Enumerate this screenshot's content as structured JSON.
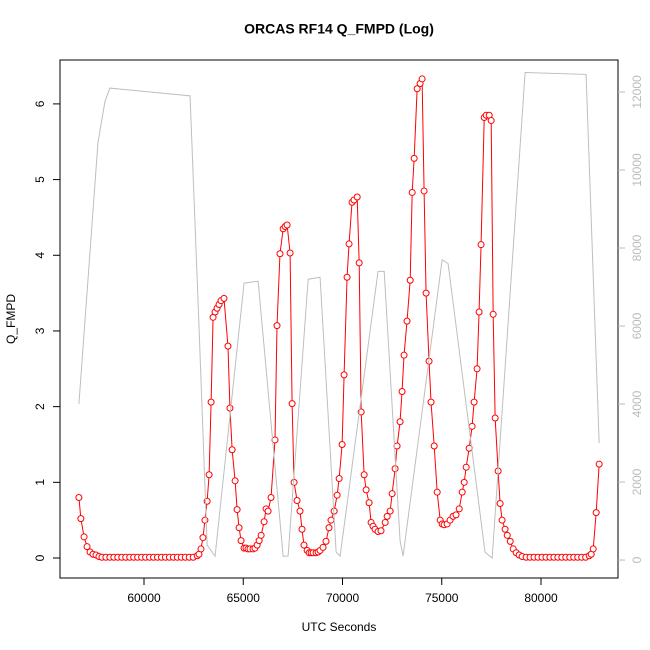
{
  "chart_data": {
    "type": "line",
    "title": "ORCAS RF14 Q_FMPD (Log)",
    "x_label": "UTC Seconds",
    "y_label": "Q_FMPD",
    "xlim": [
      55768,
      83879
    ],
    "xticks": [
      60000,
      65000,
      70000,
      75000,
      80000
    ],
    "ylim": [
      -0.264,
      6.58
    ],
    "yticks": [
      0,
      1,
      2,
      3,
      4,
      5,
      6
    ],
    "y2lim": [
      -460,
      12820
    ],
    "y2ticks": [
      0,
      2000,
      4000,
      6000,
      8000,
      10000,
      12000
    ],
    "series": [
      {
        "color": "#ff0000",
        "markers": true,
        "x": [
          56720,
          56820,
          56980,
          57130,
          57280,
          57430,
          57580,
          57730,
          57880,
          58080,
          58280,
          58480,
          58680,
          58880,
          59080,
          59280,
          59480,
          59680,
          59880,
          60080,
          60280,
          60480,
          60680,
          60880,
          61080,
          61280,
          61480,
          61680,
          61880,
          62080,
          62280,
          62480,
          62680,
          62770,
          62870,
          62970,
          63070,
          63180,
          63280,
          63380,
          63480,
          63580,
          63680,
          63780,
          63880,
          64030,
          64230,
          64330,
          64440,
          64590,
          64690,
          64790,
          64890,
          65040,
          65140,
          65240,
          65340,
          65490,
          65590,
          65700,
          65800,
          65900,
          66050,
          66150,
          66250,
          66400,
          66600,
          66700,
          66850,
          67010,
          67110,
          67210,
          67360,
          67460,
          67560,
          67710,
          67860,
          67960,
          68060,
          68220,
          68320,
          68420,
          68520,
          68670,
          68770,
          68870,
          69020,
          69170,
          69320,
          69420,
          69580,
          69730,
          69830,
          69980,
          70080,
          70230,
          70330,
          70480,
          70580,
          70740,
          70840,
          70940,
          71090,
          71190,
          71340,
          71440,
          71540,
          71640,
          71790,
          71940,
          72150,
          72250,
          72400,
          72500,
          72650,
          72750,
          72900,
          73000,
          73100,
          73250,
          73410,
          73510,
          73610,
          73760,
          73910,
          74010,
          74110,
          74210,
          74360,
          74460,
          74620,
          74770,
          74920,
          75020,
          75120,
          75270,
          75420,
          75570,
          75720,
          75880,
          76030,
          76130,
          76230,
          76380,
          76530,
          76630,
          76780,
          76880,
          76980,
          77140,
          77240,
          77390,
          77490,
          77590,
          77690,
          77840,
          77940,
          78040,
          78190,
          78300,
          78450,
          78600,
          78750,
          78900,
          79050,
          79250,
          79450,
          79650,
          79850,
          80050,
          80250,
          80450,
          80650,
          80850,
          81050,
          81250,
          81450,
          81650,
          81850,
          82050,
          82250,
          82430,
          82530,
          82630,
          82780,
          82930
        ],
        "values": [
          0.8,
          0.52,
          0.28,
          0.15,
          0.08,
          0.05,
          0.04,
          0.02,
          0.01,
          0.01,
          0.01,
          0.01,
          0.01,
          0.01,
          0.01,
          0.01,
          0.01,
          0.01,
          0.01,
          0.01,
          0.01,
          0.01,
          0.01,
          0.01,
          0.01,
          0.01,
          0.01,
          0.01,
          0.01,
          0.01,
          0.01,
          0.01,
          0.03,
          0.05,
          0.12,
          0.27,
          0.5,
          0.75,
          1.1,
          2.06,
          3.18,
          3.25,
          3.3,
          3.35,
          3.4,
          3.43,
          2.8,
          1.98,
          1.43,
          1.02,
          0.64,
          0.4,
          0.23,
          0.13,
          0.13,
          0.12,
          0.12,
          0.12,
          0.13,
          0.17,
          0.23,
          0.3,
          0.48,
          0.65,
          0.62,
          0.8,
          1.56,
          3.07,
          4.02,
          4.35,
          4.38,
          4.4,
          4.03,
          2.04,
          1.0,
          0.76,
          0.62,
          0.38,
          0.17,
          0.1,
          0.07,
          0.07,
          0.07,
          0.07,
          0.08,
          0.1,
          0.14,
          0.22,
          0.4,
          0.5,
          0.62,
          0.83,
          1.05,
          1.5,
          2.42,
          3.71,
          4.15,
          4.7,
          4.73,
          4.77,
          3.9,
          1.93,
          1.1,
          0.9,
          0.73,
          0.47,
          0.42,
          0.38,
          0.35,
          0.36,
          0.47,
          0.55,
          0.62,
          0.85,
          1.18,
          1.48,
          1.8,
          2.2,
          2.68,
          3.13,
          3.67,
          4.83,
          5.28,
          6.2,
          6.27,
          6.33,
          4.85,
          3.5,
          2.6,
          2.06,
          1.48,
          0.87,
          0.5,
          0.45,
          0.44,
          0.45,
          0.5,
          0.55,
          0.57,
          0.65,
          0.87,
          1.0,
          1.2,
          1.45,
          1.74,
          2.06,
          2.5,
          3.25,
          4.14,
          5.82,
          5.85,
          5.85,
          5.78,
          3.22,
          1.85,
          1.15,
          0.72,
          0.5,
          0.38,
          0.3,
          0.22,
          0.12,
          0.07,
          0.04,
          0.02,
          0.01,
          0.01,
          0.01,
          0.01,
          0.01,
          0.01,
          0.01,
          0.01,
          0.01,
          0.01,
          0.01,
          0.01,
          0.01,
          0.01,
          0.01,
          0.01,
          0.03,
          0.05,
          0.12,
          0.6,
          1.24
        ]
      },
      {
        "color": "#bebebe",
        "axis": "y2",
        "markers": false,
        "x": [
          56720,
          57280,
          57680,
          58030,
          58280,
          62320,
          62770,
          63180,
          63580,
          65040,
          65750,
          67010,
          67260,
          68270,
          68870,
          69680,
          69880,
          71790,
          72100,
          72900,
          73050,
          75020,
          75320,
          77180,
          77540,
          79200,
          82270,
          82930
        ],
        "values": [
          4000,
          7900,
          10700,
          11750,
          12100,
          11900,
          6000,
          380,
          100,
          7100,
          7150,
          100,
          100,
          7200,
          7250,
          200,
          100,
          7400,
          7400,
          500,
          100,
          7700,
          7600,
          200,
          50,
          12500,
          12450,
          3000
        ]
      }
    ]
  }
}
